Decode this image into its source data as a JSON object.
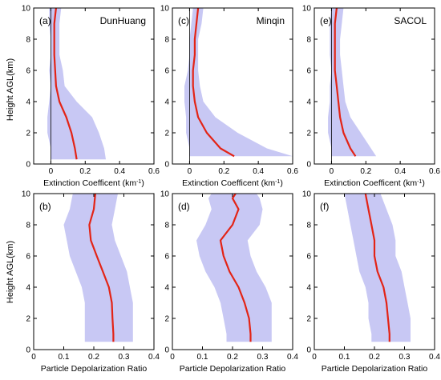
{
  "figure": {
    "ylabel": "Height AGL(km)"
  },
  "styles": {
    "band_color": "#c8c8f4",
    "line_color": "#e32416",
    "axis_color": "#000000"
  },
  "chart_data": [
    {
      "type": "line",
      "panel": "(a)",
      "site": "DunHuang",
      "xlabel": "Extinction Coefficent (km-1)",
      "xlim": [
        -0.1,
        0.6
      ],
      "ylim": [
        0,
        10
      ],
      "xticks": [
        0,
        0.2,
        0.4,
        0.6
      ],
      "xticklabels": [
        "0",
        "0.2",
        "0.4",
        "0.6"
      ],
      "yticks": [
        0,
        2,
        4,
        6,
        8,
        10
      ],
      "yticklabels": [
        "0",
        "2",
        "4",
        "6",
        "8",
        "10"
      ],
      "zero_line": true,
      "height": [
        0.3,
        1,
        2,
        3,
        4,
        5,
        6,
        7,
        8,
        9,
        10
      ],
      "mean": [
        0.15,
        0.14,
        0.12,
        0.09,
        0.05,
        0.03,
        0.025,
        0.02,
        0.02,
        0.02,
        0.03
      ],
      "lower": [
        0.0,
        0.0,
        -0.02,
        -0.02,
        -0.01,
        0.0,
        -0.01,
        0.0,
        0.0,
        -0.01,
        -0.01
      ],
      "upper": [
        0.32,
        0.31,
        0.28,
        0.24,
        0.15,
        0.08,
        0.07,
        0.05,
        0.05,
        0.05,
        0.06
      ]
    },
    {
      "type": "line",
      "panel": "(c)",
      "site": "Minqin",
      "xlabel": "Extinction Coefficent (km-1)",
      "xlim": [
        -0.1,
        0.6
      ],
      "ylim": [
        0,
        10
      ],
      "xticks": [
        0,
        0.2,
        0.4,
        0.6
      ],
      "xticklabels": [
        "0",
        "0.2",
        "0.4",
        "0.6"
      ],
      "yticks": [
        0,
        2,
        4,
        6,
        8,
        10
      ],
      "yticklabels": [
        "0",
        "2",
        "4",
        "6",
        "8",
        "10"
      ],
      "zero_line": true,
      "height": [
        0.5,
        1,
        2,
        3,
        4,
        5,
        6,
        7,
        8,
        9,
        10
      ],
      "mean": [
        0.26,
        0.18,
        0.1,
        0.05,
        0.03,
        0.02,
        0.02,
        0.03,
        0.03,
        0.04,
        0.05
      ],
      "lower": [
        0.0,
        0.0,
        -0.02,
        -0.02,
        -0.03,
        -0.03,
        -0.01,
        0.0,
        0.0,
        0.01,
        0.02
      ],
      "upper": [
        0.6,
        0.45,
        0.28,
        0.15,
        0.08,
        0.06,
        0.05,
        0.05,
        0.05,
        0.07,
        0.08
      ]
    },
    {
      "type": "line",
      "panel": "(e)",
      "site": "SACOL",
      "xlabel": "Extinction Coefficent (km-1)",
      "xlim": [
        -0.1,
        0.6
      ],
      "ylim": [
        0,
        10
      ],
      "xticks": [
        0,
        0.2,
        0.4,
        0.6
      ],
      "xticklabels": [
        "0",
        "0.2",
        "0.4",
        "0.6"
      ],
      "yticks": [
        0,
        2,
        4,
        6,
        8,
        10
      ],
      "yticklabels": [
        "0",
        "2",
        "4",
        "6",
        "8",
        "10"
      ],
      "zero_line": true,
      "height": [
        0.5,
        1,
        2,
        3,
        4,
        5,
        6,
        7,
        8,
        9,
        10
      ],
      "mean": [
        0.14,
        0.11,
        0.07,
        0.05,
        0.04,
        0.03,
        0.02,
        0.02,
        0.02,
        0.02,
        0.03
      ],
      "lower": [
        0.0,
        0.0,
        -0.02,
        -0.02,
        -0.01,
        -0.01,
        0.0,
        -0.01,
        -0.01,
        -0.01,
        0.0
      ],
      "upper": [
        0.26,
        0.23,
        0.17,
        0.11,
        0.08,
        0.07,
        0.06,
        0.05,
        0.05,
        0.06,
        0.07
      ]
    },
    {
      "type": "line",
      "panel": "(b)",
      "site": "",
      "xlabel": "Particle Depolarization Ratio",
      "xlim": [
        0,
        0.4
      ],
      "ylim": [
        0,
        10
      ],
      "xticks": [
        0,
        0.1,
        0.2,
        0.3,
        0.4
      ],
      "xticklabels": [
        "0",
        "0.1",
        "0.2",
        "0.3",
        "0.4"
      ],
      "yticks": [
        0,
        2,
        4,
        6,
        8,
        10
      ],
      "yticklabels": [
        "0",
        "2",
        "4",
        "6",
        "8",
        "10"
      ],
      "zero_line": false,
      "height": [
        0.5,
        1,
        2,
        3,
        4,
        5,
        6,
        7,
        8,
        9,
        10
      ],
      "mean": [
        0.265,
        0.265,
        0.262,
        0.26,
        0.25,
        0.23,
        0.21,
        0.19,
        0.185,
        0.2,
        0.205
      ],
      "lower": [
        0.17,
        0.17,
        0.17,
        0.17,
        0.16,
        0.14,
        0.12,
        0.11,
        0.1,
        0.12,
        0.13
      ],
      "upper": [
        0.33,
        0.33,
        0.33,
        0.33,
        0.32,
        0.31,
        0.29,
        0.27,
        0.26,
        0.27,
        0.28
      ]
    },
    {
      "type": "line",
      "panel": "(d)",
      "site": "",
      "xlabel": "Particle Depolarization Ratio",
      "xlim": [
        0,
        0.4
      ],
      "ylim": [
        0,
        10
      ],
      "xticks": [
        0,
        0.1,
        0.2,
        0.3,
        0.4
      ],
      "xticklabels": [
        "0",
        "0.1",
        "0.2",
        "0.3",
        "0.4"
      ],
      "yticks": [
        0,
        2,
        4,
        6,
        8,
        10
      ],
      "yticklabels": [
        "0",
        "2",
        "4",
        "6",
        "8",
        "10"
      ],
      "zero_line": false,
      "height": [
        0.5,
        1,
        2,
        3,
        4,
        5,
        6,
        7,
        8,
        9,
        9.7,
        10
      ],
      "mean": [
        0.26,
        0.26,
        0.255,
        0.24,
        0.22,
        0.19,
        0.17,
        0.16,
        0.2,
        0.22,
        0.2,
        0.21
      ],
      "lower": [
        0.18,
        0.18,
        0.17,
        0.16,
        0.14,
        0.11,
        0.09,
        0.08,
        0.11,
        0.13,
        0.12,
        0.13
      ],
      "upper": [
        0.33,
        0.33,
        0.33,
        0.33,
        0.31,
        0.28,
        0.26,
        0.25,
        0.29,
        0.3,
        0.29,
        0.28
      ]
    },
    {
      "type": "line",
      "panel": "(f)",
      "site": "",
      "xlabel": "Particle Depolarization Ratio",
      "xlim": [
        0,
        0.4
      ],
      "ylim": [
        0,
        10
      ],
      "xticks": [
        0,
        0.1,
        0.2,
        0.3,
        0.4
      ],
      "xticklabels": [
        "0",
        "0.1",
        "0.2",
        "0.3",
        "0.4"
      ],
      "yticks": [
        0,
        2,
        4,
        6,
        8,
        10
      ],
      "yticklabels": [
        "0",
        "2",
        "4",
        "6",
        "8",
        "10"
      ],
      "zero_line": false,
      "height": [
        0.5,
        1,
        2,
        3,
        4,
        5,
        6,
        7,
        8,
        9,
        10
      ],
      "mean": [
        0.25,
        0.25,
        0.245,
        0.24,
        0.23,
        0.21,
        0.2,
        0.2,
        0.19,
        0.18,
        0.17
      ],
      "lower": [
        0.19,
        0.19,
        0.18,
        0.18,
        0.17,
        0.15,
        0.14,
        0.13,
        0.12,
        0.11,
        0.1
      ],
      "upper": [
        0.32,
        0.32,
        0.32,
        0.31,
        0.3,
        0.29,
        0.27,
        0.27,
        0.26,
        0.24,
        0.22
      ]
    }
  ]
}
